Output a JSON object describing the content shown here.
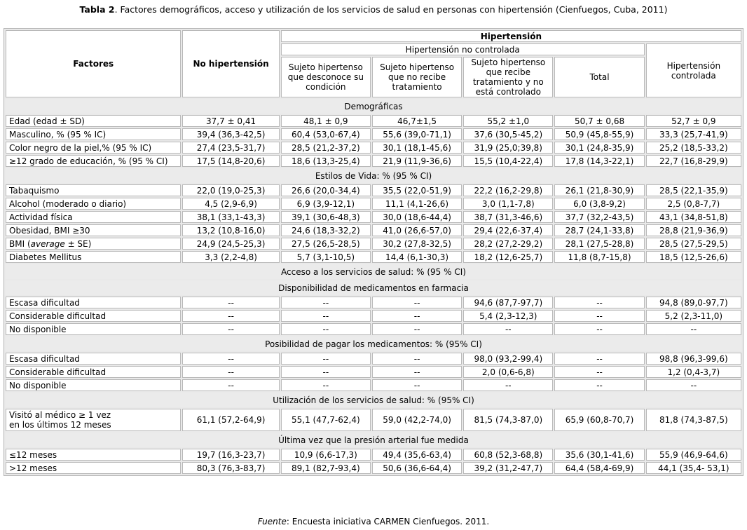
{
  "title": {
    "bold": "Tabla 2",
    "rest": ". Factores demográficos, acceso y utilización de los servicios de salud en personas con hipertensión (Cienfuegos, Cuba, 2011)"
  },
  "header": {
    "factores": "Factores",
    "no_hipertension": "No hipertensión",
    "hipertension": "Hipertensión",
    "no_controlada": "Hipertensión no controlada",
    "cols": [
      "Sujeto hipertenso que desconoce su condición",
      "Sujeto hipertenso que no recibe tratamiento",
      "Sujeto hipertenso que recibe tratamiento y no está controlado",
      "Total"
    ],
    "controlada": "Hipertensión controlada"
  },
  "rows": [
    {
      "type": "section",
      "label": "Demográficas"
    },
    {
      "label": "Edad (edad ± SD)",
      "values": [
        "37,7 ± 0,41",
        "48,1 ± 0,9",
        "46,7±1,5",
        "55,2 ±1,0",
        "50,7 ± 0,68",
        "52,7 ± 0,9"
      ]
    },
    {
      "label": "Masculino, % (95 % IC)",
      "values": [
        "39,4 (36,3-42,5)",
        "60,4 (53,0-67,4)",
        "55,6 (39,0-71,1)",
        "37,6 (30,5-45,2)",
        "50,9 (45,8-55,9)",
        "33,3 (25,7-41,9)"
      ]
    },
    {
      "label": "Color negro de la piel,% (95 % IC)",
      "values": [
        "27,4 (23,5-31,7)",
        "28,5 (21,2-37,2)",
        "30,1 (18,1-45,6)",
        "31,9 (25,0;39,8)",
        "30,1 (24,8-35,9)",
        "25,2 (18,5-33,2)"
      ]
    },
    {
      "label": "≥12 grado de educación, % (95 % CI)",
      "values": [
        "17,5 (14,8-20,6)",
        "18,6 (13,3-25,4)",
        "21,9 (11,9-36,6)",
        "15,5 (10,4-22,4)",
        "17,8 (14,3-22,1)",
        "22,7 (16,8-29,9)"
      ]
    },
    {
      "type": "section",
      "label": "Estilos de Vida: % (95 % CI)"
    },
    {
      "label": "Tabaquismo",
      "values": [
        "22,0 (19,0-25,3)",
        "26,6 (20,0-34,4)",
        "35,5 (22,0-51,9)",
        "22,2 (16,2-29,8)",
        "26,1 (21,8-30,9)",
        "28,5 (22,1-35,9)"
      ]
    },
    {
      "label": "Alcohol (moderado o diario)",
      "values": [
        "4,5 (2,9-6,9)",
        "6,9 (3,9-12,1)",
        "11,1 (4,1-26,6)",
        "3,0 (1,1-7,8)",
        "6,0 (3,8-9,2)",
        "2,5 (0,8-7,7)"
      ]
    },
    {
      "label": "Actividad física",
      "values": [
        "38,1 (33,1-43,3)",
        "39,1 (30,6-48,3)",
        "30,0 (18,6-44,4)",
        "38,7 (31,3-46,6)",
        "37,7 (32,2-43,5)",
        "43,1 (34,8-51,8)"
      ]
    },
    {
      "label": "Obesidad, BMI ≥30",
      "values": [
        "13,2 (10,8-16,0)",
        "24,6 (18,3-32,2)",
        "41,0 (26,6-57,0)",
        "29,4 (22,6-37,4)",
        "28,7 (24,1-33,8)",
        "28,8 (21,9-36,9)"
      ]
    },
    {
      "label": "BMI (",
      "label_em": "average",
      "label_post": " ± SE)",
      "values": [
        "24,9 (24,5-25,3)",
        "27,5 (26,5-28,5)",
        "30,2 (27,8-32,5)",
        "28,2 (27,2-29,2)",
        "28,1 (27,5-28,8)",
        "28,5 (27,5-29,5)"
      ]
    },
    {
      "label": "Diabetes Mellitus",
      "values": [
        "3,3 (2,2-4,8)",
        "5,7 (3,1-10,5)",
        "14,4 (6,1-30,3)",
        "18,2 (12,6-25,7)",
        "11,8 (8,7-15,8)",
        "18,5 (12,5-26,6)"
      ]
    },
    {
      "type": "section",
      "label": "Acceso a los servicios de salud: % (95 % CI)"
    },
    {
      "type": "section",
      "label": "Disponibilidad de medicamentos en farmacia"
    },
    {
      "label": "Escasa dificultad",
      "values": [
        "--",
        "--",
        "--",
        "94,6 (87,7-97,7)",
        "--",
        "94,8 (89,0-97,7)"
      ]
    },
    {
      "label": "Considerable dificultad",
      "values": [
        "--",
        "--",
        "--",
        "5,4 (2,3-12,3)",
        "--",
        "5,2 (2,3-11,0)"
      ]
    },
    {
      "label": "No disponible",
      "values": [
        "--",
        "--",
        "--",
        "--",
        "--",
        "--"
      ]
    },
    {
      "type": "section",
      "label": "Posibilidad de pagar los medicamentos: % (95% CI)"
    },
    {
      "label": "Escasa dificultad",
      "values": [
        "--",
        "--",
        "--",
        "98,0 (93,2-99,4)",
        "--",
        "98,8 (96,3-99,6)"
      ]
    },
    {
      "label": "Considerable dificultad",
      "values": [
        "--",
        "--",
        "--",
        "2,0 (0,6-6,8)",
        "--",
        "1,2 (0,4-3,7)"
      ]
    },
    {
      "label": "No disponible",
      "values": [
        "--",
        "--",
        "--",
        "--",
        "--",
        "--"
      ]
    },
    {
      "type": "section",
      "label": "Utilización de los servicios de salud: % (95% CI)"
    },
    {
      "label": "Visitó al médico ≥ 1 vez",
      "label_line2": "en los últimos 12 meses",
      "values": [
        "61,1 (57,2-64,9)",
        "55,1 (47,7-62,4)",
        "59,0 (42,2-74,0)",
        "81,5 (74,3-87,0)",
        "65,9 (60,8-70,7)",
        "81,8 (74,3-87,5)"
      ]
    },
    {
      "type": "section",
      "label": "Última vez que la presión arterial fue medida"
    },
    {
      "label": "≤12 meses",
      "values": [
        "19,7 (16,3-23,7)",
        "10,9 (6,6-17,3)",
        "49,4 (35,6-63,4)",
        "60,8 (52,3-68,8)",
        "35,6 (30,1-41,6)",
        "55,9 (46,9-64,6)"
      ]
    },
    {
      "label": ">12 meses",
      "values": [
        "80,3 (76,3-83,7)",
        "89,1 (82,7-93,4)",
        "50,6 (36,6-64,4)",
        "39,2 (31,2-47,7)",
        "64,4 (58,4-69,9)",
        "44,1 (35,4- 53,1)"
      ]
    }
  ],
  "footer": {
    "em": "Fuente",
    "rest": ": Encuesta iniciativa CARMEN Cienfuegos. 2011."
  }
}
